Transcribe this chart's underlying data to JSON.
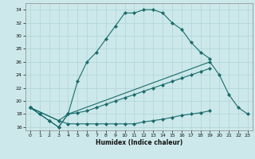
{
  "title": "",
  "xlabel": "Humidex (Indice chaleur)",
  "ylabel": "",
  "background_color": "#cce8ea",
  "line_color": "#1a6b6b",
  "x": [
    0,
    1,
    2,
    3,
    4,
    5,
    6,
    7,
    8,
    9,
    10,
    11,
    12,
    13,
    14,
    15,
    16,
    17,
    18,
    19,
    20,
    21,
    22,
    23
  ],
  "series1": [
    19,
    18,
    17,
    16,
    18,
    23,
    26,
    27.5,
    29.5,
    31.5,
    33.5,
    33.5,
    34,
    34,
    33.5,
    32,
    31,
    29,
    27.5,
    26.5,
    null,
    null,
    null,
    null
  ],
  "series2": [
    19,
    18,
    17,
    16,
    18,
    null,
    null,
    null,
    null,
    null,
    null,
    null,
    null,
    null,
    null,
    null,
    null,
    null,
    null,
    26,
    24,
    21,
    19,
    18
  ],
  "series3": [
    19,
    null,
    null,
    17,
    18,
    18.2,
    18.5,
    19,
    19.5,
    20,
    20.5,
    21,
    21.5,
    22,
    22.5,
    23,
    23.5,
    24,
    24.5,
    25,
    null,
    null,
    null,
    null
  ],
  "series4": [
    19,
    null,
    null,
    17,
    16.5,
    16.5,
    16.5,
    16.5,
    16.5,
    16.5,
    16.5,
    16.5,
    16.8,
    17,
    17.2,
    17.5,
    17.8,
    18,
    18.2,
    18.5,
    null,
    null,
    null,
    null
  ],
  "ylim": [
    15.5,
    35
  ],
  "xlim": [
    -0.5,
    23.5
  ],
  "yticks": [
    16,
    18,
    20,
    22,
    24,
    26,
    28,
    30,
    32,
    34
  ],
  "xticks": [
    0,
    1,
    2,
    3,
    4,
    5,
    6,
    7,
    8,
    9,
    10,
    11,
    12,
    13,
    14,
    15,
    16,
    17,
    18,
    19,
    20,
    21,
    22,
    23
  ],
  "grid_color": "#aed4d6",
  "marker": "D",
  "markersize": 2.2,
  "linewidth": 0.8
}
